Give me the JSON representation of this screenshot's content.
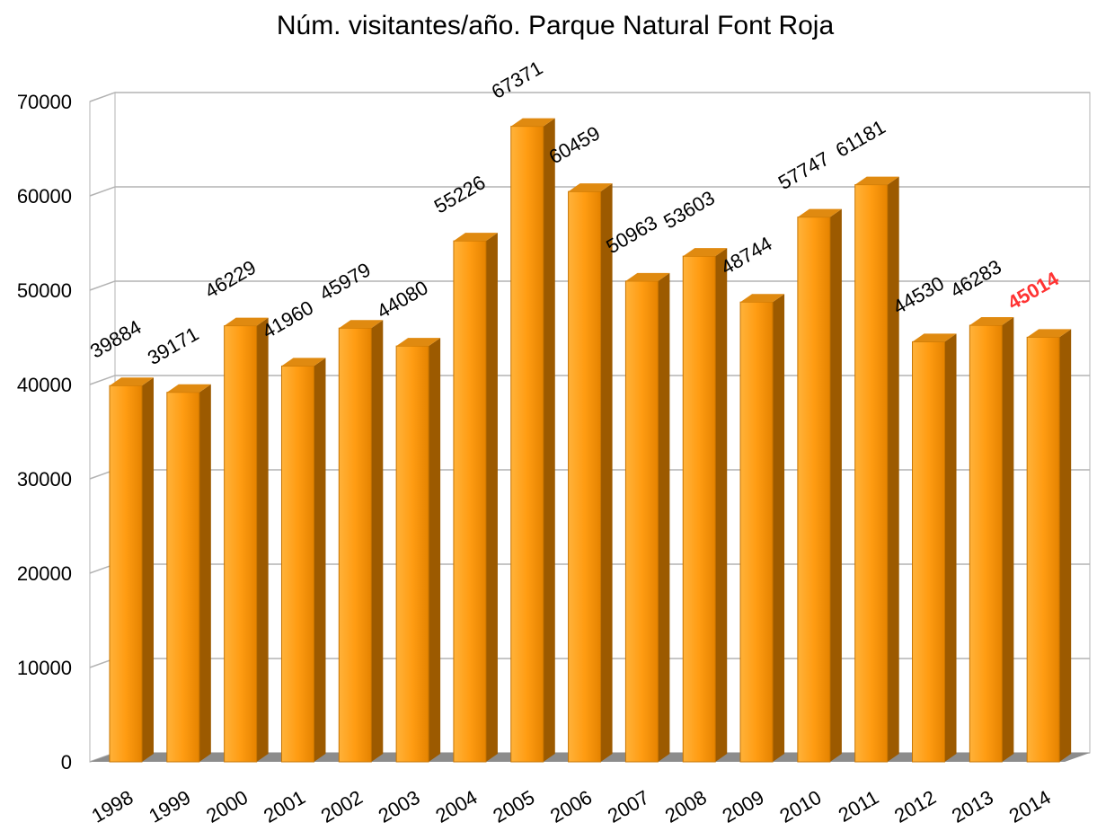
{
  "chart_data": {
    "type": "bar3d",
    "title": "Núm. visitantes/año. Parque Natural Font Roja",
    "categories": [
      "1998",
      "1999",
      "2000",
      "2001",
      "2002",
      "2003",
      "2004",
      "2005",
      "2006",
      "2007",
      "2008",
      "2009",
      "2010",
      "2011",
      "2012",
      "2013",
      "2014"
    ],
    "values": [
      39884,
      39171,
      46229,
      41960,
      45979,
      44080,
      55226,
      67371,
      60459,
      50963,
      53603,
      48744,
      57747,
      61181,
      44530,
      46283,
      45014
    ],
    "value_label_colors": [
      "#000000",
      "#000000",
      "#000000",
      "#000000",
      "#000000",
      "#000000",
      "#000000",
      "#000000",
      "#000000",
      "#000000",
      "#000000",
      "#000000",
      "#000000",
      "#000000",
      "#000000",
      "#000000",
      "#ff3333"
    ],
    "color": "#ff9c12",
    "ylim": [
      0,
      70000
    ],
    "yticks": [
      0,
      10000,
      20000,
      30000,
      40000,
      50000,
      60000,
      70000
    ],
    "grid": true
  }
}
